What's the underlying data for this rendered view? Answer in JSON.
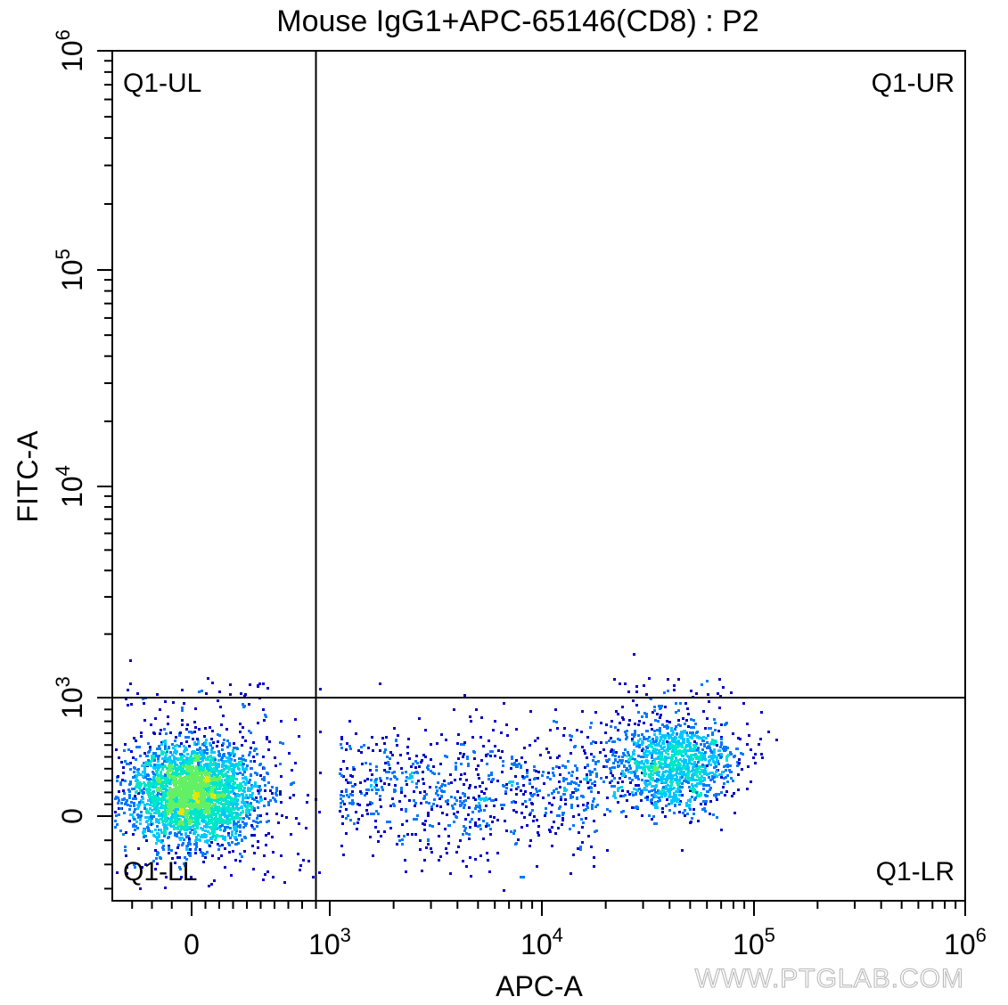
{
  "chart_data": {
    "type": "scatter",
    "title": "Mouse IgG1+APC-65146(CD8) : P2",
    "xlabel": "APC-A",
    "ylabel": "FITC-A",
    "x_scale": "biexponential",
    "y_scale": "biexponential",
    "xlim": [
      -400,
      1000000
    ],
    "ylim": [
      -350,
      1000000
    ],
    "grid": false,
    "x_tick_labels": [
      {
        "base": "0",
        "exp": ""
      },
      {
        "base": "10",
        "exp": "3"
      },
      {
        "base": "10",
        "exp": "4"
      },
      {
        "base": "10",
        "exp": "5"
      },
      {
        "base": "10",
        "exp": "6"
      }
    ],
    "y_tick_labels": [
      {
        "base": "0",
        "exp": ""
      },
      {
        "base": "10",
        "exp": "3"
      },
      {
        "base": "10",
        "exp": "4"
      },
      {
        "base": "10",
        "exp": "5"
      },
      {
        "base": "10",
        "exp": "6"
      }
    ],
    "quadrant_gate": {
      "x": 900,
      "y": 1000
    },
    "quadrant_labels": {
      "upper_left": "Q1-UL",
      "upper_right": "Q1-UR",
      "lower_left": "Q1-LL",
      "lower_right": "Q1-LR"
    },
    "populations": [
      {
        "center_x": 0,
        "center_y": 0,
        "share": 0.55
      },
      {
        "center_x": 40000,
        "center_y": 200,
        "share": 0.3
      }
    ],
    "density_colors": [
      "#0000c8",
      "#0078ff",
      "#00c8ff",
      "#00e6c8",
      "#64f064",
      "#e6e600",
      "#ff9600"
    ]
  },
  "watermark": "WWW.PTGLAB.COM"
}
